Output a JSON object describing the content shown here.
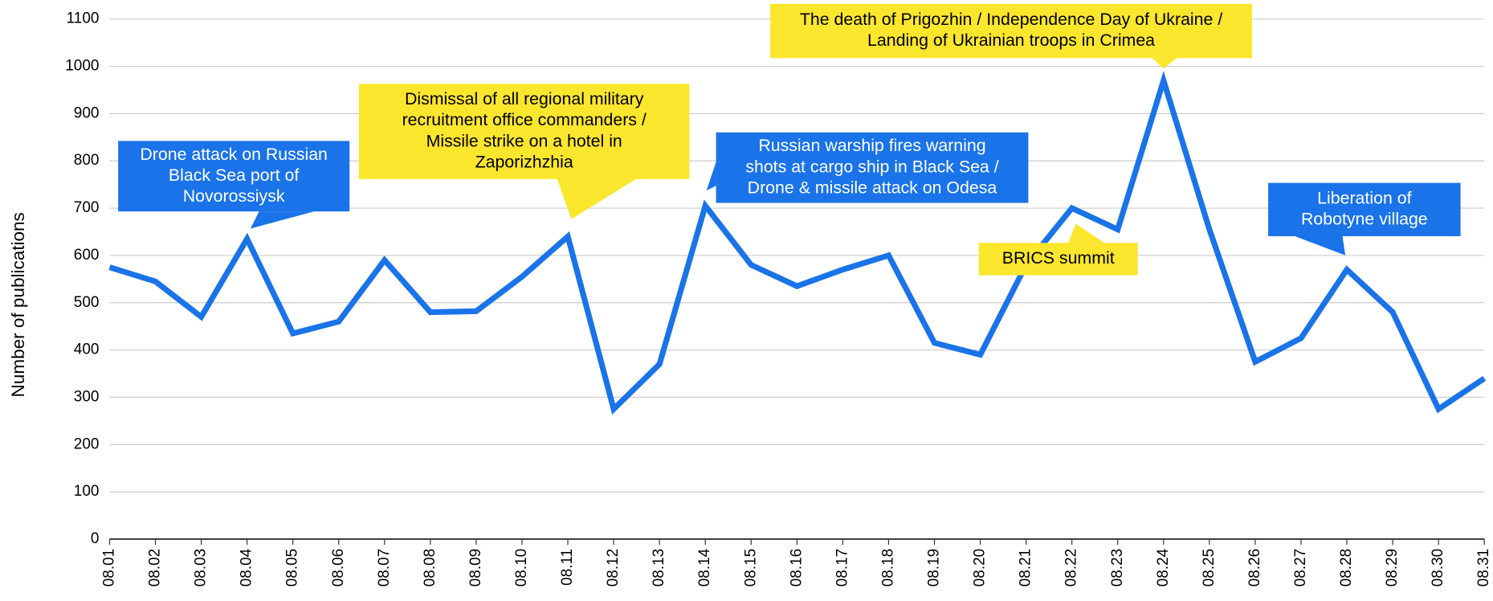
{
  "chart_data": {
    "type": "line",
    "y_label": "Number of publications",
    "categories": [
      "08.01",
      "08.02",
      "08.03",
      "08.04",
      "08.05",
      "08.06",
      "08.07",
      "08.08",
      "08.09",
      "08.10",
      "08.11",
      "08.12",
      "08.13",
      "08.14",
      "08.15",
      "08.16",
      "08.17",
      "08.18",
      "08.19",
      "08.20",
      "08.21",
      "08.22",
      "08.23",
      "08.24",
      "08.25",
      "08.26",
      "08.27",
      "08.28",
      "08.29",
      "08.30",
      "08.31"
    ],
    "series": [
      {
        "name": "Number of publications",
        "color": "#1a73e8",
        "values": [
          575,
          545,
          470,
          635,
          435,
          460,
          590,
          480,
          482,
          555,
          640,
          275,
          370,
          705,
          580,
          535,
          570,
          600,
          415,
          390,
          580,
          700,
          655,
          970,
          655,
          375,
          425,
          570,
          480,
          275,
          340
        ]
      }
    ],
    "ylim": [
      0,
      1100
    ],
    "yticks": [
      0,
      100,
      200,
      300,
      400,
      500,
      600,
      700,
      800,
      900,
      1000,
      1100
    ],
    "grid": true,
    "annotations": [
      {
        "color": "#1a73e8",
        "lines": [
          "Drone attack on Russian",
          "Black Sea port of",
          "Novorossiysk"
        ]
      },
      {
        "color": "#fbe62e",
        "lines": [
          "Dismissal of all regional military",
          "recruitment office commanders /",
          "Missile strike on a hotel in",
          "Zaporizhzhia"
        ]
      },
      {
        "color": "#1a73e8",
        "lines": [
          "Russian warship fires warning",
          "shots at cargo ship in Black Sea /",
          "Drone & missile attack on Odesa"
        ]
      },
      {
        "color": "#fbe62e",
        "lines": [
          "The death of Prigozhin /  Independence Day of Ukraine /",
          "Landing of Ukrainian troops in Crimea"
        ]
      },
      {
        "color": "#fbe62e",
        "lines": [
          "BRICS summit"
        ]
      },
      {
        "color": "#1a73e8",
        "lines": [
          "Liberation of",
          "Robotyne village"
        ]
      }
    ]
  }
}
